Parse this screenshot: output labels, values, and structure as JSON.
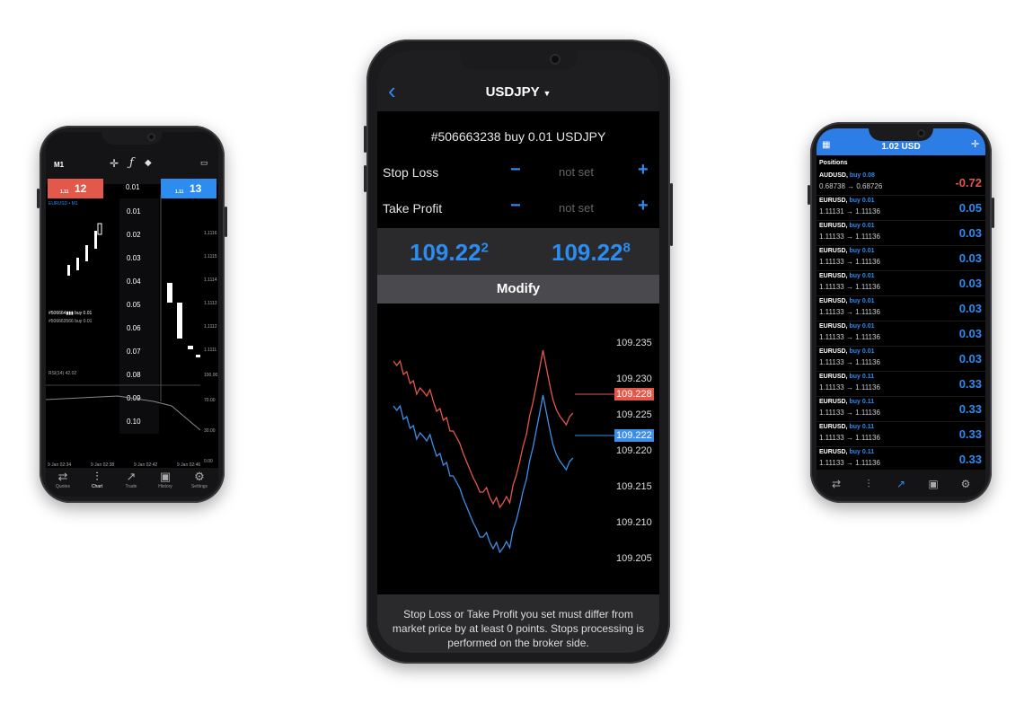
{
  "left_phone": {
    "timeframe": "M1",
    "bid": "12",
    "bid_prefix": "1.11",
    "ask": "13",
    "ask_prefix": "1.11",
    "symbol_label": "EURUSD • M1",
    "volume_selected": "0.01",
    "volume_options": [
      "0.01",
      "0.02",
      "0.03",
      "0.04",
      "0.05",
      "0.06",
      "0.07",
      "0.08",
      "0.09",
      "0.10"
    ],
    "price_ticks": [
      "1.1116",
      "1.1115",
      "1.1114",
      "1.1113",
      "1.1112",
      "1.1111"
    ],
    "rsi_label": "RSI(14) 42.02",
    "rsi_ticks": [
      "100.00",
      "70.00",
      "30.00",
      "0.00"
    ],
    "time_ticks": [
      "9 Jan 02:34",
      "9 Jan 02:38",
      "9 Jan 02:42",
      "9 Jan 02:46"
    ],
    "order_lines": [
      "#506664▮▮▮ buy 0.01",
      "#506663566 buy 0.01"
    ],
    "tabs": [
      "Quotes",
      "Chart",
      "Trade",
      "History",
      "Settings"
    ]
  },
  "middle_phone": {
    "symbol": "USDJPY",
    "order_title": "#506663238 buy 0.01 USDJPY",
    "stop_loss_label": "Stop Loss",
    "take_profit_label": "Take Profit",
    "not_set": "not set",
    "bid_main": "109.22",
    "bid_sup": "2",
    "ask_main": "109.22",
    "ask_sup": "8",
    "modify_label": "Modify",
    "axis_ticks": [
      "109.235",
      "109.230",
      "109.225",
      "109.220",
      "109.215",
      "109.210",
      "109.205"
    ],
    "ask_tag": "109.228",
    "bid_tag": "109.222",
    "footnote": "Stop Loss or Take Profit you set must differ from market price by at least 0 points. Stops processing is performed on the broker side.",
    "colors": {
      "accent": "#2c8cf0",
      "ask": "#e2584a",
      "bid": "#3d8fe8"
    }
  },
  "right_phone": {
    "balance": "1.02 USD",
    "section": "Positions",
    "positions": [
      {
        "symbol": "AUDUSD,",
        "action": "buy 0.08",
        "prices": "0.68738 → 0.68726",
        "profit": "-0.72"
      },
      {
        "symbol": "EURUSD,",
        "action": "buy 0.01",
        "prices": "1.11131 → 1.11136",
        "profit": "0.05"
      },
      {
        "symbol": "EURUSD,",
        "action": "buy 0.01",
        "prices": "1.11133 → 1.11136",
        "profit": "0.03"
      },
      {
        "symbol": "EURUSD,",
        "action": "buy 0.01",
        "prices": "1.11133 → 1.11136",
        "profit": "0.03"
      },
      {
        "symbol": "EURUSD,",
        "action": "buy 0.01",
        "prices": "1.11133 → 1.11136",
        "profit": "0.03"
      },
      {
        "symbol": "EURUSD,",
        "action": "buy 0.01",
        "prices": "1.11133 → 1.11136",
        "profit": "0.03"
      },
      {
        "symbol": "EURUSD,",
        "action": "buy 0.01",
        "prices": "1.11133 → 1.11136",
        "profit": "0.03"
      },
      {
        "symbol": "EURUSD,",
        "action": "buy 0.01",
        "prices": "1.11133 → 1.11136",
        "profit": "0.03"
      },
      {
        "symbol": "EURUSD,",
        "action": "buy 0.11",
        "prices": "1.11133 → 1.11136",
        "profit": "0.33"
      },
      {
        "symbol": "EURUSD,",
        "action": "buy 0.11",
        "prices": "1.11133 → 1.11136",
        "profit": "0.33"
      },
      {
        "symbol": "EURUSD,",
        "action": "buy 0.11",
        "prices": "1.11133 → 1.11136",
        "profit": "0.33"
      },
      {
        "symbol": "EURUSD,",
        "action": "buy 0.11",
        "prices": "1.11133 → 1.11136",
        "profit": "0.33"
      }
    ]
  }
}
